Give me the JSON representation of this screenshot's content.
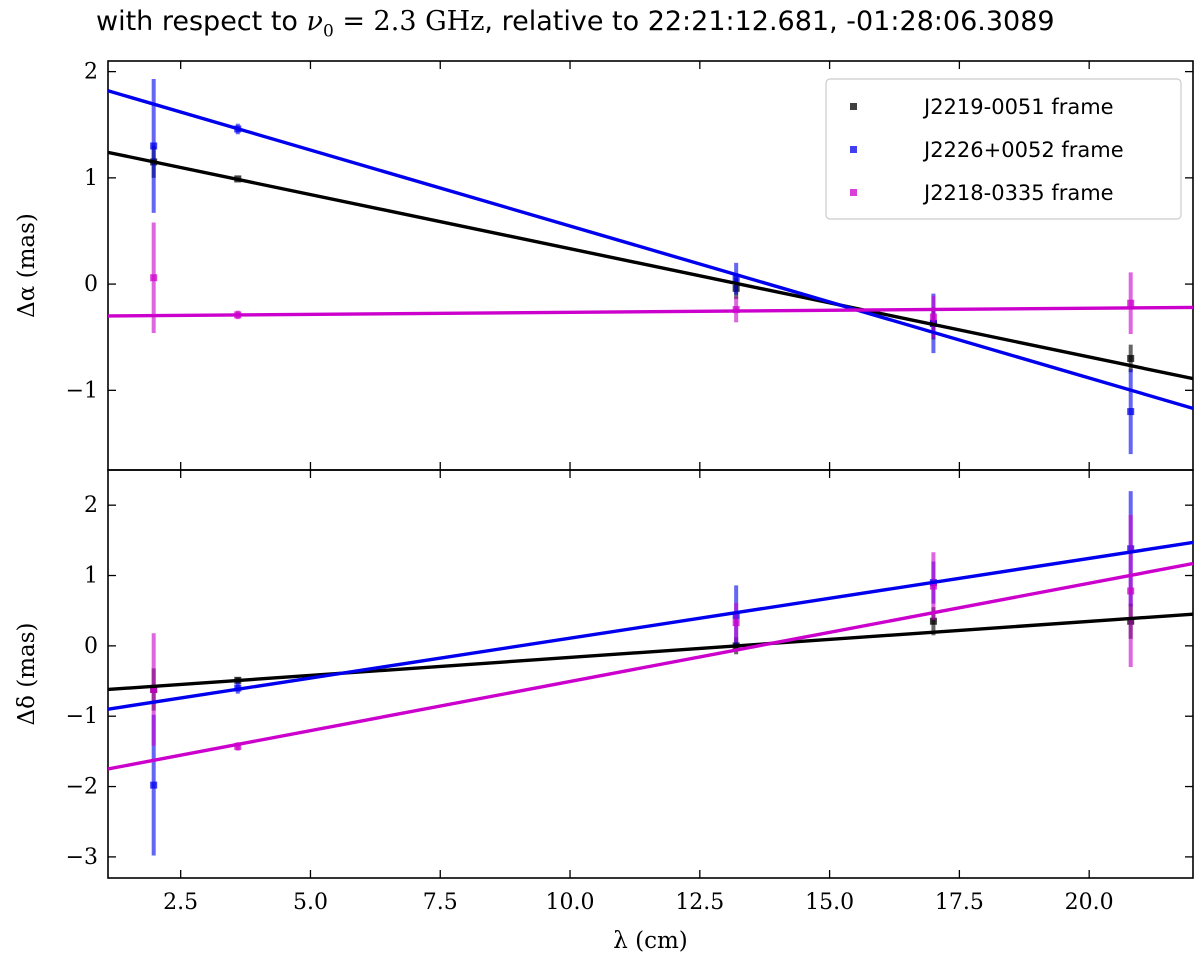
{
  "title": {
    "prefix": "with respect to ",
    "nu_symbol": "ν",
    "nu_subscript": "0",
    "equals_value": " = 2.3 GHz",
    "suffix": ", relative to 22:21:12.681, -01:28:06.3089"
  },
  "colors": {
    "J2219-0051 frame": "#000000",
    "J2226+0052 frame": "#0000ee",
    "J2218-0335 frame": "#cc00cc"
  },
  "chart_data": [
    {
      "type": "scatter",
      "panel": "top",
      "xlabel": "",
      "ylabel": "Δα (mas)",
      "xlim": [
        1.1,
        22.0
      ],
      "ylim": [
        -1.75,
        2.1
      ],
      "xticks": [
        2.5,
        5.0,
        7.5,
        10.0,
        12.5,
        15.0,
        17.5,
        20.0
      ],
      "yticks": [
        -1,
        0,
        1,
        2
      ],
      "ytick_labels": [
        "−1",
        "0",
        "1",
        "2"
      ],
      "legend": {
        "placement": "top-right",
        "entries": [
          "J2219-0051 frame",
          "J2226+0052 frame",
          "J2218-0335 frame"
        ]
      },
      "series": [
        {
          "name": "J2219-0051 frame",
          "points": [
            {
              "x": 1.98,
              "y": 1.15,
              "err": 0.15
            },
            {
              "x": 3.6,
              "y": 0.99,
              "err": 0.01
            },
            {
              "x": 13.2,
              "y": -0.04,
              "err": 0.1
            },
            {
              "x": 17.0,
              "y": -0.37,
              "err": 0.15
            },
            {
              "x": 20.8,
              "y": -0.7,
              "err": 0.13
            }
          ],
          "fit": {
            "x": [
              1.1,
              22.0
            ],
            "y": [
              1.24,
              -0.89
            ]
          }
        },
        {
          "name": "J2226+0052 frame",
          "points": [
            {
              "x": 1.98,
              "y": 1.3,
              "err": 0.63
            },
            {
              "x": 3.6,
              "y": 1.46,
              "err": 0.05
            },
            {
              "x": 13.2,
              "y": 0.05,
              "err": 0.15
            },
            {
              "x": 17.0,
              "y": -0.37,
              "err": 0.28
            },
            {
              "x": 20.8,
              "y": -1.2,
              "err": 0.4
            }
          ],
          "fit": {
            "x": [
              1.1,
              22.0
            ],
            "y": [
              1.82,
              -1.17
            ]
          }
        },
        {
          "name": "J2218-0335 frame",
          "points": [
            {
              "x": 1.98,
              "y": 0.06,
              "err": 0.52
            },
            {
              "x": 3.6,
              "y": -0.29,
              "err": 0.04
            },
            {
              "x": 13.2,
              "y": -0.24,
              "err": 0.12
            },
            {
              "x": 17.0,
              "y": -0.31,
              "err": 0.2
            },
            {
              "x": 20.8,
              "y": -0.18,
              "err": 0.29
            }
          ],
          "fit": {
            "x": [
              1.1,
              22.0
            ],
            "y": [
              -0.3,
              -0.22
            ]
          }
        }
      ]
    },
    {
      "type": "scatter",
      "panel": "bottom",
      "xlabel": "λ (cm)",
      "ylabel": "Δδ (mas)",
      "xlim": [
        1.1,
        22.0
      ],
      "ylim": [
        -3.3,
        2.5
      ],
      "xticks": [
        2.5,
        5.0,
        7.5,
        10.0,
        12.5,
        15.0,
        17.5,
        20.0
      ],
      "xtick_labels": [
        "2.5",
        "5.0",
        "7.5",
        "10.0",
        "12.5",
        "15.0",
        "17.5",
        "20.0"
      ],
      "yticks": [
        -3,
        -2,
        -1,
        0,
        1,
        2
      ],
      "ytick_labels": [
        "−3",
        "−2",
        "−1",
        "0",
        "1",
        "2"
      ],
      "series": [
        {
          "name": "J2219-0051 frame",
          "points": [
            {
              "x": 1.98,
              "y": -0.62,
              "err": 0.3
            },
            {
              "x": 3.6,
              "y": -0.49,
              "err": 0.04
            },
            {
              "x": 13.2,
              "y": 0.0,
              "err": 0.12
            },
            {
              "x": 17.0,
              "y": 0.35,
              "err": 0.2
            },
            {
              "x": 20.8,
              "y": 0.35,
              "err": 0.25
            }
          ],
          "fit": {
            "x": [
              1.1,
              22.0
            ],
            "y": [
              -0.62,
              0.45
            ]
          }
        },
        {
          "name": "J2226+0052 frame",
          "points": [
            {
              "x": 1.98,
              "y": -1.98,
              "err": 1.0
            },
            {
              "x": 3.6,
              "y": -0.6,
              "err": 0.08
            },
            {
              "x": 13.2,
              "y": 0.43,
              "err": 0.43
            },
            {
              "x": 17.0,
              "y": 0.9,
              "err": 0.3
            },
            {
              "x": 20.8,
              "y": 1.38,
              "err": 0.82
            }
          ],
          "fit": {
            "x": [
              1.1,
              22.0
            ],
            "y": [
              -0.9,
              1.47
            ]
          }
        },
        {
          "name": "J2218-0335 frame",
          "points": [
            {
              "x": 1.98,
              "y": -0.62,
              "err": 0.8
            },
            {
              "x": 3.6,
              "y": -1.43,
              "err": 0.06
            },
            {
              "x": 13.2,
              "y": 0.33,
              "err": 0.28
            },
            {
              "x": 17.0,
              "y": 0.85,
              "err": 0.48
            },
            {
              "x": 20.8,
              "y": 0.78,
              "err": 1.08
            }
          ],
          "fit": {
            "x": [
              1.1,
              22.0
            ],
            "y": [
              -1.75,
              1.17
            ]
          }
        }
      ]
    }
  ]
}
